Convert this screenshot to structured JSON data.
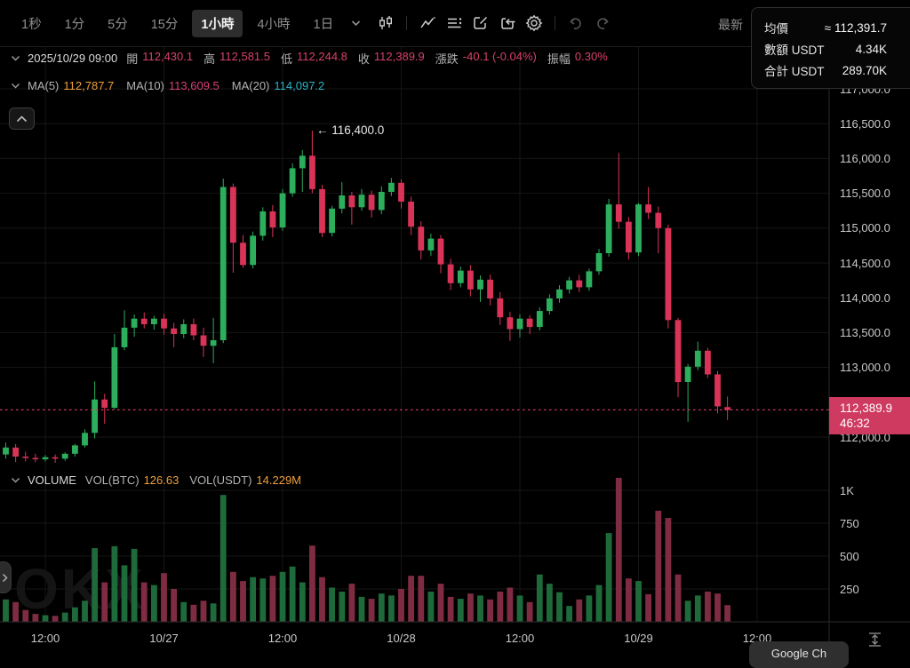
{
  "toolbar": {
    "intervals": [
      {
        "label": "1秒",
        "active": false
      },
      {
        "label": "1分",
        "active": false
      },
      {
        "label": "5分",
        "active": false
      },
      {
        "label": "15分",
        "active": false
      },
      {
        "label": "1小時",
        "active": true
      },
      {
        "label": "4小時",
        "active": false
      },
      {
        "label": "1日",
        "active": false
      }
    ],
    "latest_label": "最新"
  },
  "trade_panel": {
    "rows": [
      {
        "label": "均價",
        "value": "≈ 112,391.7"
      },
      {
        "label": "數額 USDT",
        "value": "4.34K"
      },
      {
        "label": "合計 USDT",
        "value": "289.70K"
      }
    ]
  },
  "legend": {
    "datetime": "2025/10/29 09:00",
    "fields": [
      {
        "label": "開",
        "value": "112,430.1"
      },
      {
        "label": "高",
        "value": "112,581.5"
      },
      {
        "label": "低",
        "value": "112,244.8"
      },
      {
        "label": "收",
        "value": "112,389.9"
      },
      {
        "label": "漲跌",
        "value": "-40.1 (-0.04%)"
      },
      {
        "label": "振幅",
        "value": "0.30%"
      }
    ]
  },
  "ma": {
    "items": [
      {
        "label": "MA(5)",
        "value": "112,787.7",
        "color": "#ee9f3c"
      },
      {
        "label": "MA(10)",
        "value": "113,609.5",
        "color": "#d83f76"
      },
      {
        "label": "MA(20)",
        "value": "114,097.2",
        "color": "#2ab2c8"
      }
    ]
  },
  "volume_header": {
    "title": "VOLUME",
    "fields": [
      {
        "label": "VOL(BTC)",
        "value": "126.63"
      },
      {
        "label": "VOL(USDT)",
        "value": "14.229M"
      }
    ]
  },
  "price_badge": {
    "price": "112,389.9",
    "countdown": "46:32"
  },
  "annotation": {
    "text": "← 116,400.0"
  },
  "watermark": "OKX",
  "bottom_popup": "Google Ch",
  "chart_data": {
    "type": "candlestick",
    "interval": "1小時",
    "title": "BTC/USDT 1小時 K線",
    "price_ticks": [
      {
        "value": 117000,
        "label": "117,000.0"
      },
      {
        "value": 116500,
        "label": "116,500.0"
      },
      {
        "value": 116000,
        "label": "116,000.0"
      },
      {
        "value": 115500,
        "label": "115,500.0"
      },
      {
        "value": 115000,
        "label": "115,000.0"
      },
      {
        "value": 114500,
        "label": "114,500.0"
      },
      {
        "value": 114000,
        "label": "114,000.0"
      },
      {
        "value": 113500,
        "label": "113,500.0"
      },
      {
        "value": 113000,
        "label": "113,000.0"
      },
      {
        "value": 112000,
        "label": "112,000.0"
      }
    ],
    "volume_ticks": [
      {
        "value": 1000,
        "label": "1K"
      },
      {
        "value": 750,
        "label": "750"
      },
      {
        "value": 500,
        "label": "500"
      },
      {
        "value": 250,
        "label": "250"
      }
    ],
    "time_ticks": [
      {
        "index": 4,
        "label": "12:00"
      },
      {
        "index": 16,
        "label": "10/27"
      },
      {
        "index": 28,
        "label": "12:00"
      },
      {
        "index": 40,
        "label": "10/28"
      },
      {
        "index": 52,
        "label": "12:00"
      },
      {
        "index": 64,
        "label": "10/29"
      },
      {
        "index": 76,
        "label": "12:00"
      }
    ],
    "current_price": 112389.9,
    "high_annotation": {
      "index": 31,
      "price": 116400
    },
    "colors": {
      "up": "#2cae5d",
      "down": "#d93358",
      "vol_up": "#1f6a3a",
      "vol_down": "#7f2c42",
      "price_line": "#cc3960",
      "grid": "#161616",
      "axis": "#2b2b2b"
    },
    "candles": [
      [
        111750,
        111920,
        111690,
        111850,
        170
      ],
      [
        111850,
        111900,
        111640,
        111720,
        150
      ],
      [
        111720,
        111790,
        111650,
        111700,
        90
      ],
      [
        111700,
        111760,
        111640,
        111680,
        60
      ],
      [
        111680,
        111740,
        111650,
        111710,
        50
      ],
      [
        111710,
        111750,
        111630,
        111690,
        45
      ],
      [
        111690,
        111780,
        111660,
        111760,
        70
      ],
      [
        111760,
        111900,
        111720,
        111880,
        110
      ],
      [
        111880,
        112110,
        111850,
        112060,
        160
      ],
      [
        112060,
        112800,
        111980,
        112540,
        560
      ],
      [
        112540,
        112620,
        112190,
        112420,
        300
      ],
      [
        112420,
        113480,
        112400,
        113290,
        575
      ],
      [
        113290,
        113820,
        113250,
        113570,
        430
      ],
      [
        113570,
        113760,
        113440,
        113700,
        555
      ],
      [
        113700,
        113790,
        113560,
        113620,
        300
      ],
      [
        113620,
        113740,
        113540,
        113700,
        280
      ],
      [
        113700,
        113770,
        113470,
        113560,
        370
      ],
      [
        113560,
        113640,
        113290,
        113480,
        250
      ],
      [
        113480,
        113690,
        113420,
        113620,
        150
      ],
      [
        113620,
        113700,
        113390,
        113460,
        130
      ],
      [
        113460,
        113570,
        113150,
        113310,
        160
      ],
      [
        113310,
        113710,
        113060,
        113390,
        140
      ],
      [
        113390,
        115710,
        113350,
        115590,
        965
      ],
      [
        115590,
        115640,
        114360,
        114790,
        380
      ],
      [
        114790,
        114900,
        114430,
        114470,
        310
      ],
      [
        114470,
        114950,
        114420,
        114890,
        340
      ],
      [
        114890,
        115300,
        114820,
        115240,
        330
      ],
      [
        115240,
        115330,
        114870,
        115010,
        350
      ],
      [
        115010,
        115560,
        114960,
        115500,
        380
      ],
      [
        115500,
        115930,
        115450,
        115860,
        420
      ],
      [
        115860,
        116120,
        115520,
        116040,
        300
      ],
      [
        116040,
        116400,
        115500,
        115560,
        580
      ],
      [
        115560,
        115620,
        114870,
        114930,
        340
      ],
      [
        114930,
        115320,
        114880,
        115280,
        260
      ],
      [
        115280,
        115660,
        115210,
        115470,
        230
      ],
      [
        115470,
        115520,
        115050,
        115300,
        290
      ],
      [
        115300,
        115560,
        115250,
        115480,
        190
      ],
      [
        115480,
        115540,
        115150,
        115260,
        175
      ],
      [
        115260,
        115600,
        115200,
        115520,
        215
      ],
      [
        115520,
        115720,
        115460,
        115650,
        200
      ],
      [
        115650,
        115700,
        115280,
        115380,
        250
      ],
      [
        115380,
        115450,
        114900,
        115020,
        350
      ],
      [
        115020,
        115100,
        114550,
        114680,
        350
      ],
      [
        114680,
        114920,
        114600,
        114850,
        230
      ],
      [
        114850,
        114900,
        114350,
        114480,
        290
      ],
      [
        114480,
        114560,
        114110,
        114210,
        190
      ],
      [
        114210,
        114450,
        114150,
        114390,
        175
      ],
      [
        114390,
        114470,
        114020,
        114120,
        215
      ],
      [
        114120,
        114320,
        113940,
        114260,
        200
      ],
      [
        114260,
        114330,
        113890,
        113990,
        170
      ],
      [
        113990,
        114080,
        113610,
        113720,
        230
      ],
      [
        113720,
        113800,
        113380,
        113550,
        260
      ],
      [
        113550,
        113760,
        113430,
        113700,
        200
      ],
      [
        113700,
        113750,
        113480,
        113580,
        150
      ],
      [
        113580,
        113860,
        113530,
        113810,
        360
      ],
      [
        113810,
        114050,
        113760,
        113990,
        290
      ],
      [
        113990,
        114180,
        113930,
        114120,
        225
      ],
      [
        114120,
        114300,
        114060,
        114250,
        120
      ],
      [
        114250,
        114330,
        114080,
        114150,
        170
      ],
      [
        114150,
        114420,
        114100,
        114380,
        200
      ],
      [
        114380,
        114700,
        114330,
        114640,
        280
      ],
      [
        114640,
        115420,
        114590,
        115340,
        675
      ],
      [
        115340,
        116080,
        114990,
        115090,
        1095
      ],
      [
        115090,
        115160,
        114550,
        114650,
        330
      ],
      [
        114650,
        115360,
        114600,
        115340,
        310
      ],
      [
        115340,
        115590,
        115130,
        115220,
        210
      ],
      [
        115220,
        115310,
        114640,
        115000,
        845
      ],
      [
        115000,
        115050,
        113560,
        113680,
        790
      ],
      [
        113680,
        113710,
        112570,
        112790,
        360
      ],
      [
        112790,
        113050,
        112220,
        113010,
        160
      ],
      [
        113010,
        113370,
        112960,
        113240,
        200
      ],
      [
        113240,
        113280,
        112850,
        112900,
        230
      ],
      [
        112900,
        112950,
        112340,
        112440,
        215
      ],
      [
        112430.1,
        112581.5,
        112244.8,
        112389.9,
        127
      ]
    ]
  }
}
